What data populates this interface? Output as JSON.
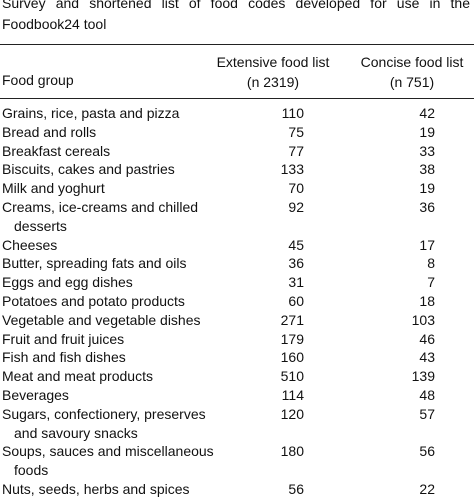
{
  "caption": "Survey and shortened list of food codes developed for use in the Foodbook24 tool",
  "table": {
    "header": {
      "food_group": "Food group",
      "extensive": "Extensive food list",
      "extensive_n": "(n 2319)",
      "concise": "Concise food list",
      "concise_n": "(n 751)"
    },
    "rows": [
      [
        "Grains, rice, pasta and pizza",
        110,
        42
      ],
      [
        "Bread and rolls",
        75,
        19
      ],
      [
        "Breakfast cereals",
        77,
        33
      ],
      [
        "Biscuits, cakes and pastries",
        133,
        38
      ],
      [
        "Milk and yoghurt",
        70,
        19
      ],
      [
        "Creams, ice-creams and chilled desserts",
        92,
        36
      ],
      [
        "Cheeses",
        45,
        17
      ],
      [
        "Butter, spreading fats and oils",
        36,
        8
      ],
      [
        "Eggs and egg dishes",
        31,
        7
      ],
      [
        "Potatoes and potato products",
        60,
        18
      ],
      [
        "Vegetable and vegetable dishes",
        271,
        103
      ],
      [
        "Fruit and fruit juices",
        179,
        46
      ],
      [
        "Fish and fish dishes",
        160,
        43
      ],
      [
        "Meat and meat products",
        510,
        139
      ],
      [
        "Beverages",
        114,
        48
      ],
      [
        "Sugars, confectionery, preserves and savoury snacks",
        120,
        57
      ],
      [
        "Soups, sauces and miscellaneous foods",
        180,
        56
      ],
      [
        "Nuts, seeds, herbs and spices",
        56,
        22
      ]
    ]
  }
}
